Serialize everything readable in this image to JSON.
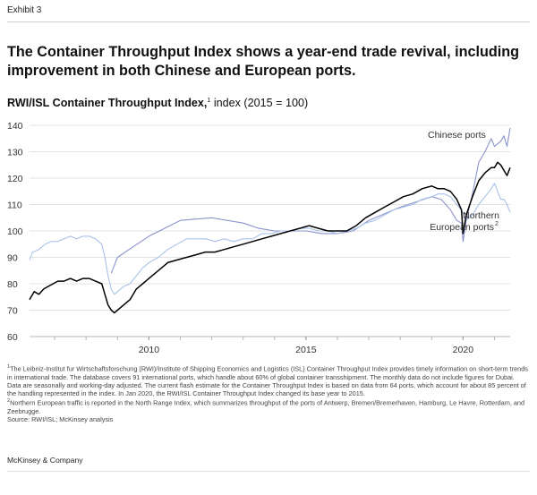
{
  "exhibit": "Exhibit 3",
  "title": "The Container Throughput Index shows a year-end trade revival, including improvement in both Chinese and European ports.",
  "subtitle": {
    "bold": "RWI/ISL Container Throughput Index,",
    "mark": "1",
    "rest": " index (2015 = 100)"
  },
  "chart_data": {
    "type": "line",
    "ylim": [
      60,
      140
    ],
    "yticks": [
      60,
      70,
      80,
      90,
      100,
      110,
      120,
      130,
      140
    ],
    "xlim": [
      2006.2,
      2021.5
    ],
    "xticks": [
      {
        "x": 2010,
        "label": "2010"
      },
      {
        "x": 2015,
        "label": "2015"
      },
      {
        "x": 2020,
        "label": "2020"
      }
    ],
    "grid": "horizontal",
    "annotations": {
      "chinese": "Chinese ports",
      "european_line1": "Northern",
      "european_line2": "European ports",
      "european_mark": "2"
    },
    "series": [
      {
        "key": "chinese",
        "color": "#8c93cc",
        "points": [
          [
            2008.8,
            84
          ],
          [
            2009.0,
            90
          ],
          [
            2009.5,
            94
          ],
          [
            2010.0,
            98
          ],
          [
            2010.5,
            101
          ],
          [
            2011.0,
            104
          ],
          [
            2012.0,
            105
          ],
          [
            2013.0,
            103
          ],
          [
            2013.5,
            101
          ],
          [
            2014.0,
            100
          ],
          [
            2015.0,
            100
          ],
          [
            2015.5,
            99
          ],
          [
            2016.0,
            99
          ],
          [
            2016.5,
            100
          ],
          [
            2017.0,
            104
          ],
          [
            2018.0,
            109
          ],
          [
            2018.5,
            111
          ],
          [
            2019.0,
            113
          ],
          [
            2019.3,
            112
          ],
          [
            2019.6,
            108
          ],
          [
            2019.8,
            104
          ],
          [
            2019.95,
            103
          ],
          [
            2020.0,
            96
          ],
          [
            2020.1,
            104
          ],
          [
            2020.3,
            114
          ],
          [
            2020.5,
            126
          ],
          [
            2020.7,
            130
          ],
          [
            2020.9,
            135
          ],
          [
            2021.0,
            132
          ],
          [
            2021.2,
            134
          ],
          [
            2021.3,
            136
          ],
          [
            2021.4,
            132
          ],
          [
            2021.5,
            139
          ]
        ]
      },
      {
        "key": "european",
        "color": "#a9c2e9",
        "points": [
          [
            2006.2,
            89
          ],
          [
            2006.3,
            92
          ],
          [
            2006.5,
            93
          ],
          [
            2006.7,
            95
          ],
          [
            2006.9,
            96
          ],
          [
            2007.1,
            96
          ],
          [
            2007.3,
            97
          ],
          [
            2007.5,
            98
          ],
          [
            2007.7,
            97
          ],
          [
            2007.9,
            98
          ],
          [
            2008.1,
            98
          ],
          [
            2008.3,
            97
          ],
          [
            2008.5,
            95
          ],
          [
            2008.6,
            90
          ],
          [
            2008.7,
            83
          ],
          [
            2008.8,
            78
          ],
          [
            2008.9,
            76
          ],
          [
            2009.0,
            77
          ],
          [
            2009.2,
            79
          ],
          [
            2009.4,
            80
          ],
          [
            2009.6,
            83
          ],
          [
            2009.8,
            86
          ],
          [
            2010.0,
            88
          ],
          [
            2010.3,
            90
          ],
          [
            2010.6,
            93
          ],
          [
            2010.9,
            95
          ],
          [
            2011.2,
            97
          ],
          [
            2011.5,
            97
          ],
          [
            2011.8,
            97
          ],
          [
            2012.1,
            96
          ],
          [
            2012.4,
            97
          ],
          [
            2012.7,
            96
          ],
          [
            2013.0,
            97
          ],
          [
            2013.3,
            97
          ],
          [
            2013.6,
            99
          ],
          [
            2013.9,
            99
          ],
          [
            2014.2,
            100
          ],
          [
            2014.5,
            100
          ],
          [
            2014.8,
            101
          ],
          [
            2015.1,
            101
          ],
          [
            2015.4,
            100
          ],
          [
            2015.7,
            100
          ],
          [
            2016.0,
            99
          ],
          [
            2016.3,
            100
          ],
          [
            2016.6,
            101
          ],
          [
            2016.9,
            103
          ],
          [
            2017.2,
            104
          ],
          [
            2017.5,
            106
          ],
          [
            2017.8,
            108
          ],
          [
            2018.1,
            109
          ],
          [
            2018.4,
            110
          ],
          [
            2018.7,
            112
          ],
          [
            2019.0,
            113
          ],
          [
            2019.2,
            114
          ],
          [
            2019.4,
            114
          ],
          [
            2019.6,
            113
          ],
          [
            2019.8,
            110
          ],
          [
            2019.95,
            108
          ],
          [
            2020.1,
            104
          ],
          [
            2020.3,
            106
          ],
          [
            2020.5,
            110
          ],
          [
            2020.7,
            113
          ],
          [
            2020.9,
            116
          ],
          [
            2021.0,
            118
          ],
          [
            2021.1,
            115
          ],
          [
            2021.2,
            112
          ],
          [
            2021.3,
            112
          ],
          [
            2021.4,
            110
          ],
          [
            2021.5,
            107
          ]
        ]
      },
      {
        "key": "total",
        "color": "#000000",
        "points": [
          [
            2006.2,
            74
          ],
          [
            2006.35,
            77
          ],
          [
            2006.5,
            76
          ],
          [
            2006.65,
            78
          ],
          [
            2006.8,
            79
          ],
          [
            2006.95,
            80
          ],
          [
            2007.1,
            81
          ],
          [
            2007.3,
            81
          ],
          [
            2007.5,
            82
          ],
          [
            2007.7,
            81
          ],
          [
            2007.9,
            82
          ],
          [
            2008.1,
            82
          ],
          [
            2008.3,
            81
          ],
          [
            2008.5,
            80
          ],
          [
            2008.6,
            76
          ],
          [
            2008.7,
            72
          ],
          [
            2008.8,
            70
          ],
          [
            2008.9,
            69
          ],
          [
            2009.0,
            70
          ],
          [
            2009.2,
            72
          ],
          [
            2009.4,
            74
          ],
          [
            2009.6,
            78
          ],
          [
            2009.8,
            80
          ],
          [
            2010.0,
            82
          ],
          [
            2010.3,
            85
          ],
          [
            2010.6,
            88
          ],
          [
            2010.9,
            89
          ],
          [
            2011.2,
            90
          ],
          [
            2011.5,
            91
          ],
          [
            2011.8,
            92
          ],
          [
            2012.1,
            92
          ],
          [
            2012.4,
            93
          ],
          [
            2012.7,
            94
          ],
          [
            2013.0,
            95
          ],
          [
            2013.3,
            96
          ],
          [
            2013.6,
            97
          ],
          [
            2013.9,
            98
          ],
          [
            2014.2,
            99
          ],
          [
            2014.5,
            100
          ],
          [
            2014.8,
            101
          ],
          [
            2015.1,
            102
          ],
          [
            2015.4,
            101
          ],
          [
            2015.7,
            100
          ],
          [
            2016.0,
            100
          ],
          [
            2016.3,
            100
          ],
          [
            2016.6,
            102
          ],
          [
            2016.9,
            105
          ],
          [
            2017.2,
            107
          ],
          [
            2017.5,
            109
          ],
          [
            2017.8,
            111
          ],
          [
            2018.1,
            113
          ],
          [
            2018.4,
            114
          ],
          [
            2018.7,
            116
          ],
          [
            2019.0,
            117
          ],
          [
            2019.2,
            116
          ],
          [
            2019.4,
            116
          ],
          [
            2019.6,
            115
          ],
          [
            2019.8,
            112
          ],
          [
            2019.95,
            108
          ],
          [
            2020.0,
            99
          ],
          [
            2020.1,
            106
          ],
          [
            2020.3,
            113
          ],
          [
            2020.5,
            119
          ],
          [
            2020.7,
            122
          ],
          [
            2020.9,
            124
          ],
          [
            2021.0,
            124
          ],
          [
            2021.1,
            126
          ],
          [
            2021.2,
            125
          ],
          [
            2021.3,
            123
          ],
          [
            2021.4,
            121
          ],
          [
            2021.5,
            124
          ]
        ]
      }
    ]
  },
  "notes": [
    {
      "mark": "1",
      "text": "The Leibniz-Institut fur Wirtschaftsforschung (RWI)/Institute of Shipping Economics and Logistics (ISL) Container Throughput Index provides timely information on short-term trends in international trade. The database covers 91 international ports, which handle about 60% of global container transshipment. The monthly data do not include figures for Dubai. Data are seasonally and working-day adjusted. The current flash estimate for the Container Throughput Index is based on data from 64 ports, which account for about 85 percent of the handling represented in the index. In Jan 2020, the RWI/ISL Container Throughput Index changed its base year to 2015."
    },
    {
      "mark": "2",
      "text": "Northern European traffic is reported in the North Range Index, which summarizes throughput of the ports of Antwerp, Bremen/Bremerhaven, Hamburg, Le Havre, Rotterdam, and Zeebrugge."
    },
    {
      "mark": "",
      "text": "Source: RWI/ISL; McKinsey analysis"
    }
  ],
  "brand": "McKinsey & Company"
}
